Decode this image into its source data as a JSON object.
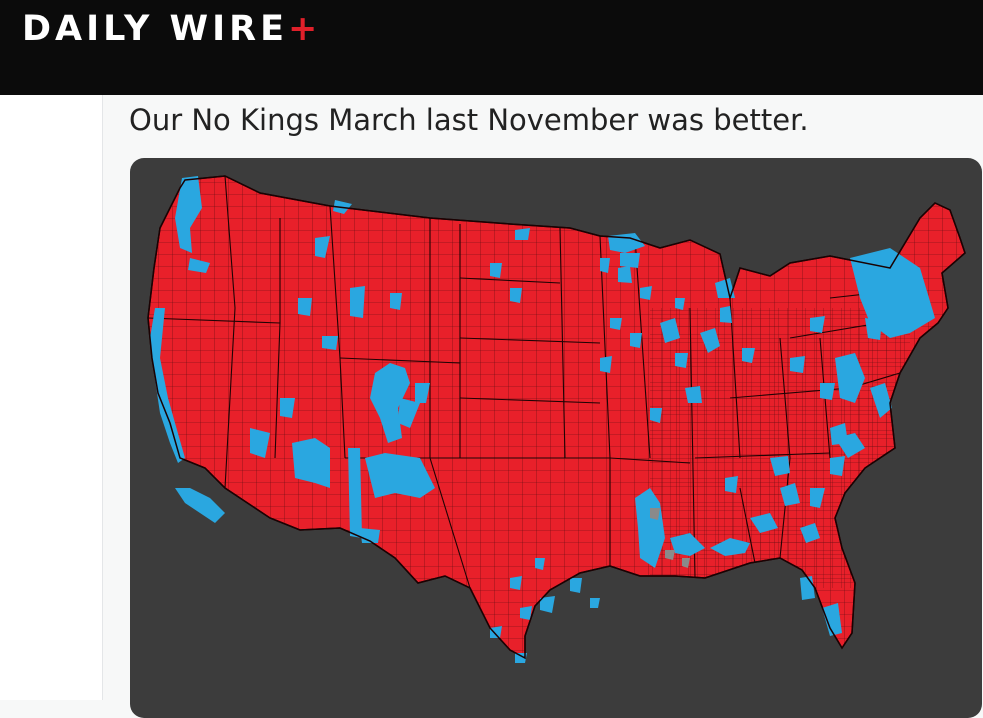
{
  "header": {
    "logo_text": "DAILY WIRE",
    "logo_plus": "+"
  },
  "post": {
    "text": "Our No Kings March last November was better."
  },
  "map": {
    "colors": {
      "background": "#3c3c3c",
      "red": "#e8202a",
      "blue": "#2aa7e0",
      "gray": "#8a8a8a",
      "border": "#3a0a0a"
    }
  }
}
